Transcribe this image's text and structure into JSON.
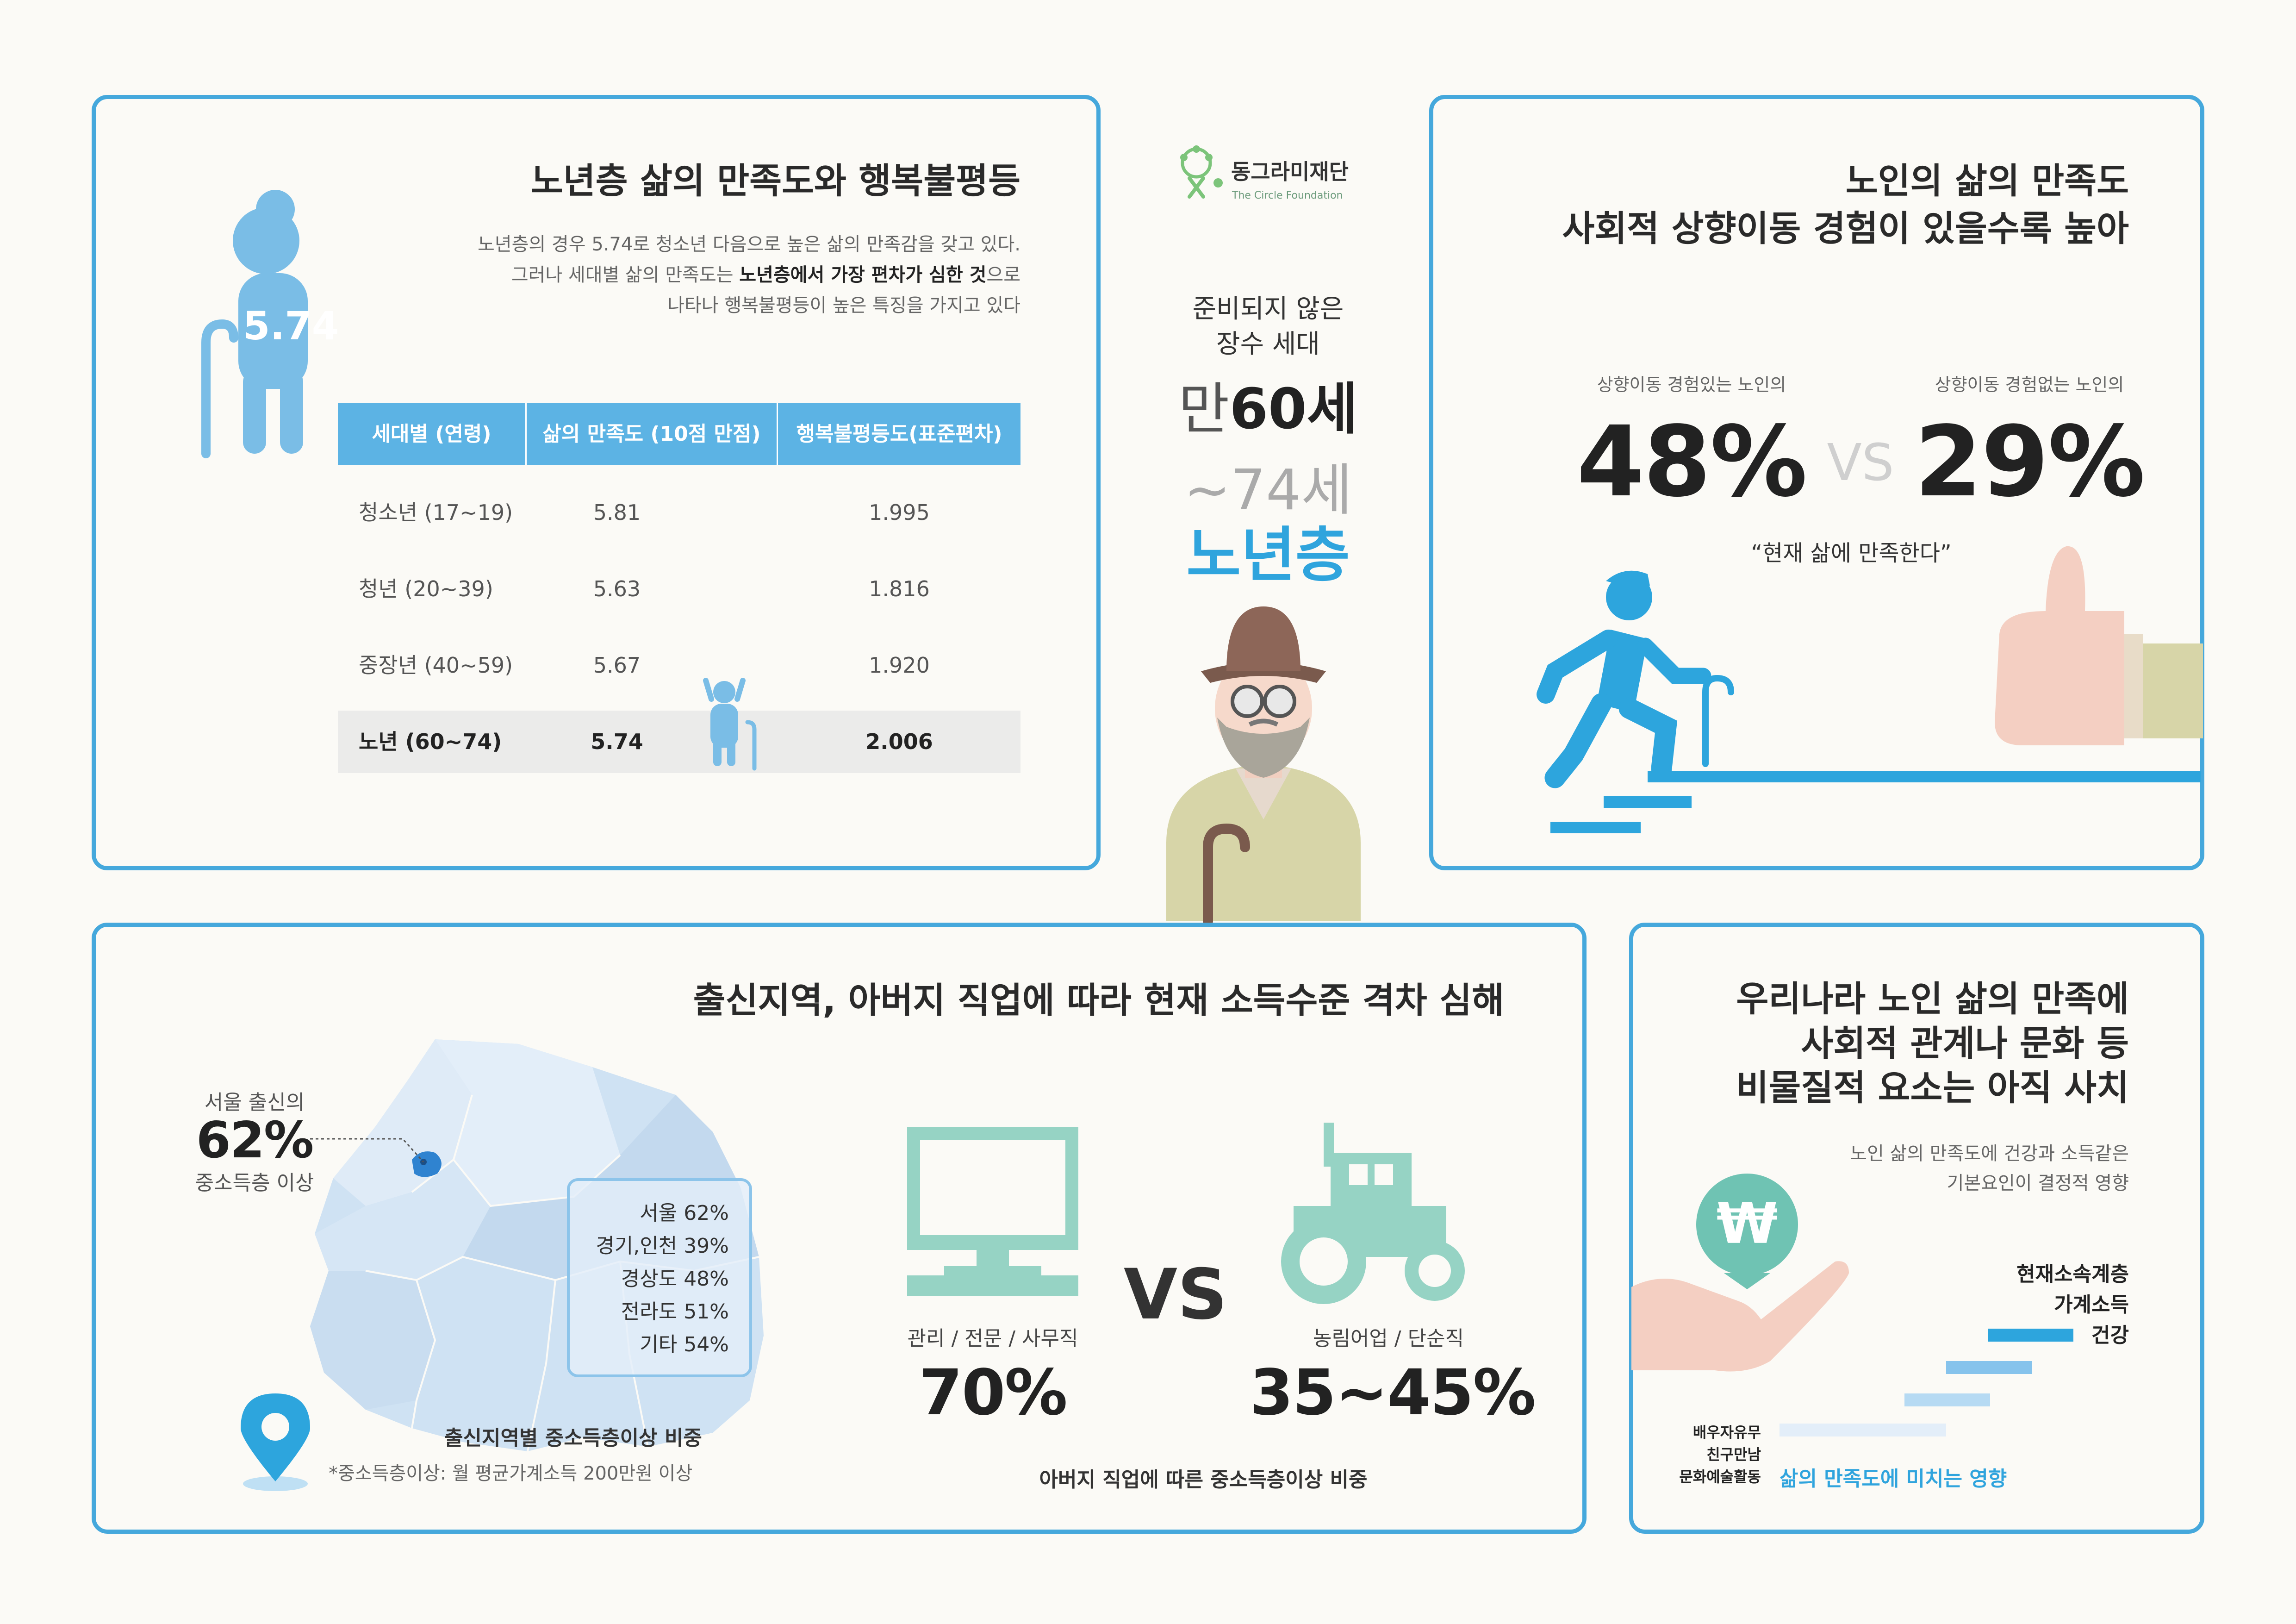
{
  "logo": {
    "name": "동그라미재단",
    "sub": "The Circle Foundation"
  },
  "center": {
    "caption": [
      "준비되지 않은",
      "장수 세대"
    ],
    "age_prefix": "만",
    "age_from": "60세",
    "age_to": "~74세",
    "group": "노년층"
  },
  "panel1": {
    "title": "노년층 삶의 만족도와 행복불평등",
    "figure_value": "5.74",
    "desc_line1": "노년층의 경우 5.74로 청소년 다음으로 높은 삶의 만족감을 갖고 있다.",
    "desc_line2_pre": "그러나 세대별 삶의 만족도는 ",
    "desc_line2_bold": "노년층에서 가장 편차가 심한 것",
    "desc_line2_post": "으로",
    "desc_line3": "나타나 행복불평등이 높은 특징을 가지고 있다",
    "table": {
      "headers": [
        "세대별 (연령)",
        "삶의 만족도 (10점 만점)",
        "행복불평등도(표준편차)"
      ],
      "rows": [
        [
          "청소년 (17~19)",
          "5.81",
          "1.995"
        ],
        [
          "청년 (20~39)",
          "5.63",
          "1.816"
        ],
        [
          "중장년 (40~59)",
          "5.67",
          "1.920"
        ],
        [
          "노년 (60~74)",
          "5.74",
          "2.006"
        ]
      ]
    }
  },
  "panel2": {
    "title_line1": "노인의 삶의 만족도",
    "title_line2": "사회적 상향이동 경험이 있을수록 높아",
    "left_label": "상향이동 경험있는 노인의",
    "left_value": "48%",
    "vs": "VS",
    "right_label": "상향이동 경험없는 노인의",
    "right_value": "29%",
    "quote": "“현재 삶에 만족한다”"
  },
  "panel3": {
    "title": "출신지역, 아버지 직업에 따라 현재 소득수준 격차 심해",
    "seoul_label": "서울 출신의",
    "seoul_value": "62%",
    "seoul_sub": "중소득층 이상",
    "regions": [
      "서울 62%",
      "경기,인천 39%",
      "경상도 48%",
      "전라도 51%",
      "기타 54%"
    ],
    "map_caption": "출신지역별 중소득층이상 비중",
    "map_note": "*중소득층이상: 월 평균가계소득 200만원 이상",
    "job_left_label": "관리 / 전문 / 사무직",
    "job_left_value": "70%",
    "vs": "VS",
    "job_right_label": "농림어업 / 단순직",
    "job_right_value": "35~45%",
    "job_caption": "아버지 직업에 따른 중소득층이상 비중"
  },
  "panel4": {
    "title_line1": "우리나라 노인 삶의 만족에",
    "title_line2": "사회적 관계나 문화 등",
    "title_line3": "비물질적 요소는 아직 사치",
    "desc_line1": "노인 삶의 만족도에 건강과 소득같은",
    "desc_line2": "기본요인이 결정적 영향",
    "top_labels": [
      "현재소속계층",
      "가계소득",
      "건강"
    ],
    "bottom_labels": [
      "배우자유무",
      "친구만남",
      "문화예술활동"
    ],
    "axis_caption": "삶의 만족도에 미치는 영향",
    "won_symbol": "₩"
  },
  "colors": {
    "border": "#45a8dc",
    "accent": "#2fa4dd",
    "mint": "#96d3c4",
    "map": "#cfe2f3"
  }
}
